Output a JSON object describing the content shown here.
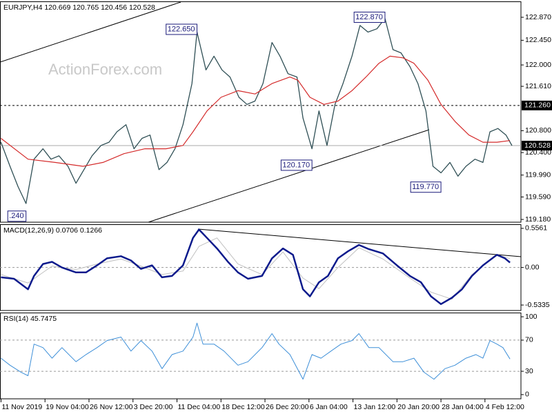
{
  "chart_data": [
    {
      "type": "line",
      "title": "EURJPY,H4  120.669 120.765 120.456 120.528",
      "watermark": "ActionForex.com",
      "xlim": [
        -1,
        520
      ],
      "ylim": [
        119.13,
        123.16
      ],
      "yticks": [
        {
          "value": 122.87,
          "label": "122.870"
        },
        {
          "value": 122.45,
          "label": "122.450"
        },
        {
          "value": 122,
          "label": "122.000"
        },
        {
          "value": 121.61,
          "label": "121.610"
        },
        {
          "value": 120.8,
          "label": "120.800"
        },
        {
          "value": 120.4,
          "label": "120.400"
        },
        {
          "value": 119.99,
          "label": "119.990"
        },
        {
          "value": 119.59,
          "label": "119.590"
        },
        {
          "value": 119.18,
          "label": "119.180"
        }
      ],
      "hlines": [
        {
          "value": 121.26,
          "label": "121.260",
          "style": "dashed"
        },
        {
          "value": 120.528,
          "label": "120.528",
          "style": "solid"
        }
      ],
      "annotations": [
        {
          "x": 196,
          "value": 122.65,
          "label": "122.650"
        },
        {
          "x": 384,
          "value": 122.87,
          "label": "122.870"
        },
        {
          "x": 311,
          "value": 120.17,
          "label": "120.170"
        },
        {
          "x": 440,
          "value": 119.77,
          "label": "119.770"
        },
        {
          "x": 25,
          "value": 119.24,
          "label": ".240"
        }
      ],
      "series": [
        {
          "color": "#2f4f55",
          "width": 1.3,
          "x": [
            0,
            9,
            17,
            25,
            33,
            42,
            50,
            58,
            67,
            75,
            83,
            91,
            100,
            108,
            116,
            125,
            133,
            141,
            149,
            158,
            166,
            174,
            182,
            191,
            196,
            205,
            213,
            221,
            229,
            238,
            246,
            254,
            262,
            271,
            279,
            287,
            296,
            302,
            311,
            318,
            326,
            334,
            342,
            351,
            359,
            367,
            376,
            384,
            392,
            400,
            409,
            417,
            425,
            432,
            440,
            449,
            457,
            465,
            474,
            482,
            489,
            497,
            505,
            511
          ],
          "values": [
            120.59,
            120.15,
            119.78,
            119.47,
            120.28,
            120.47,
            120.28,
            120.34,
            120.15,
            119.84,
            120.09,
            120.34,
            120.53,
            120.59,
            120.78,
            120.91,
            120.47,
            120.66,
            120.72,
            120.09,
            120.22,
            120.47,
            120.91,
            121.66,
            122.6,
            121.91,
            122.16,
            121.91,
            121.78,
            121.41,
            121.28,
            121.34,
            121.66,
            122.41,
            122.16,
            121.84,
            121.78,
            121.03,
            120.47,
            121.16,
            120.53,
            121.28,
            121.66,
            122.16,
            122.72,
            122.6,
            122.66,
            122.85,
            122.28,
            122.22,
            121.97,
            121.66,
            121.16,
            120.15,
            120.03,
            120.22,
            119.97,
            120.15,
            120.28,
            120.22,
            120.78,
            120.84,
            120.72,
            120.528
          ]
        },
        {
          "color": "#d42a2a",
          "width": 1.2,
          "x": [
            0,
            27,
            54,
            82,
            102,
            123,
            144,
            165,
            182,
            192,
            206,
            220,
            237,
            254,
            271,
            289,
            297,
            309,
            323,
            337,
            351,
            365,
            378,
            389,
            402,
            413,
            427,
            440,
            454,
            468,
            482,
            496,
            509
          ],
          "values": [
            120.66,
            120.28,
            120.22,
            120.15,
            120.22,
            120.38,
            120.47,
            120.47,
            120.53,
            120.78,
            121.16,
            121.41,
            121.53,
            121.47,
            121.66,
            121.78,
            121.72,
            121.41,
            121.28,
            121.34,
            121.53,
            121.78,
            122.03,
            122.16,
            122.13,
            122.03,
            121.72,
            121.28,
            120.97,
            120.72,
            120.59,
            120.59,
            120.62
          ]
        }
      ]
    },
    {
      "type": "line",
      "title": "MACD(12,26,9) 0.0706 0.1266",
      "xlim": [
        -1,
        520
      ],
      "ylim": [
        -0.6113,
        0.6145
      ],
      "yticks": [
        0.5561,
        {
          "value": 0,
          "label": "0.00"
        },
        -0.5335
      ],
      "levels": [
        0
      ],
      "series": [
        {
          "color": "#c0c0c0",
          "width": 1,
          "x": [
            0,
            27,
            51,
            75,
            96,
            120,
            140,
            161,
            182,
            198,
            216,
            237,
            261,
            282,
            302,
            318,
            337,
            358,
            382,
            409,
            430,
            451,
            471,
            496,
            509
          ],
          "values": [
            -0.1,
            -0.22,
            0.02,
            -0.03,
            0.05,
            0.12,
            0.02,
            -0.1,
            -0.05,
            0.3,
            0.42,
            0.05,
            -0.1,
            0.22,
            -0.15,
            -0.3,
            0,
            0.28,
            0.12,
            -0.15,
            -0.35,
            -0.45,
            -0.1,
            0.18,
            0.1266
          ]
        },
        {
          "color": "#0b1a8c",
          "width": 2.5,
          "x": [
            0,
            13,
            27,
            33,
            42,
            51,
            61,
            75,
            85,
            96,
            106,
            120,
            130,
            140,
            151,
            161,
            171,
            182,
            192,
            198,
            206,
            216,
            227,
            237,
            247,
            261,
            271,
            282,
            292,
            302,
            309,
            318,
            327,
            337,
            347,
            358,
            368,
            382,
            396,
            409,
            420,
            430,
            440,
            451,
            461,
            471,
            482,
            496,
            504,
            509
          ],
          "values": [
            -0.14,
            -0.16,
            -0.31,
            -0.12,
            0.05,
            0.08,
            0,
            -0.07,
            -0.07,
            0.03,
            0.13,
            0.16,
            0.1,
            -0.02,
            0.03,
            -0.14,
            -0.12,
            0.03,
            0.42,
            0.54,
            0.42,
            0.27,
            0.08,
            -0.07,
            -0.16,
            -0.12,
            0.13,
            0.27,
            0.18,
            -0.31,
            -0.41,
            -0.21,
            -0.12,
            0.13,
            0.23,
            0.32,
            0.26,
            0.2,
            0.03,
            -0.12,
            -0.21,
            -0.41,
            -0.52,
            -0.43,
            -0.31,
            -0.12,
            0.03,
            0.18,
            0.13,
            0.0706
          ]
        }
      ]
    },
    {
      "type": "line",
      "title": "RSI(14) 45.7475",
      "xlim": [
        -1,
        520
      ],
      "ylim": [
        -5.4,
        105.4
      ],
      "yticks": [
        100,
        70,
        30,
        0
      ],
      "levels": [
        70,
        30
      ],
      "xticks": [
        {
          "value": 0,
          "label": "11 Nov 2019"
        },
        {
          "value": 44,
          "label": "19 Nov 04:00"
        },
        {
          "value": 88,
          "label": "26 Nov 12:00"
        },
        {
          "value": 132,
          "label": "3 Dec 20:00"
        },
        {
          "value": 176,
          "label": "11 Dec 04:00"
        },
        {
          "value": 220,
          "label": "18 Dec 12:00"
        },
        {
          "value": 264,
          "label": "26 Dec 20:00"
        },
        {
          "value": 308,
          "label": "6 Jan 04:00"
        },
        {
          "value": 352,
          "label": "13 Jan 12:00"
        },
        {
          "value": 396,
          "label": "20 Jan 20:00"
        },
        {
          "value": 440,
          "label": "28 Jan 04:00"
        },
        {
          "value": 484,
          "label": "4 Feb 12:00"
        }
      ],
      "series": [
        {
          "color": "#3d8fd8",
          "width": 1,
          "x": [
            0,
            9,
            20,
            27,
            33,
            42,
            51,
            61,
            75,
            85,
            96,
            106,
            120,
            130,
            140,
            151,
            161,
            171,
            182,
            192,
            196,
            202,
            213,
            223,
            237,
            247,
            261,
            271,
            278,
            289,
            302,
            311,
            320,
            330,
            340,
            351,
            358,
            368,
            378,
            392,
            402,
            413,
            423,
            433,
            444,
            454,
            465,
            475,
            482,
            489,
            496,
            502,
            509
          ],
          "values": [
            46.8,
            37.8,
            28.8,
            24.3,
            64.9,
            60.4,
            46.8,
            60.4,
            42.3,
            51.4,
            60.4,
            69.4,
            73.9,
            55.9,
            69.4,
            55.9,
            33.3,
            51.4,
            55.9,
            73.9,
            91.9,
            64.9,
            64.9,
            55.9,
            37.8,
            42.3,
            60.4,
            78.4,
            64.9,
            51.4,
            19.8,
            51.4,
            46.8,
            55.9,
            64.9,
            69.4,
            78.4,
            60.4,
            60.4,
            42.3,
            42.3,
            46.8,
            28.8,
            19.8,
            33.3,
            37.8,
            46.8,
            51.4,
            46.8,
            69.4,
            64.9,
            60.4,
            45.7475
          ]
        }
      ]
    }
  ]
}
